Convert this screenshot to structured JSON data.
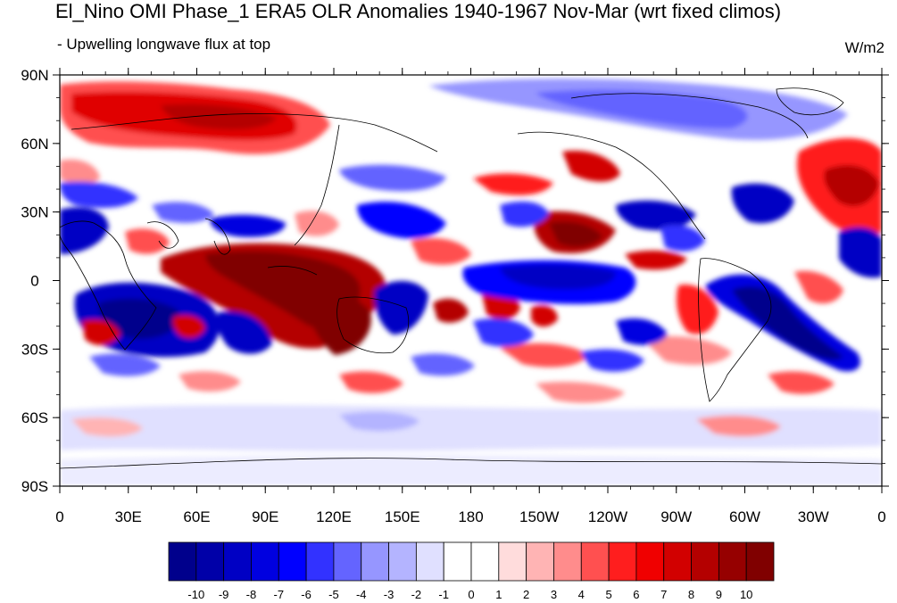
{
  "title": "El_Nino OMI Phase_1 ERA5 OLR Anomalies 1940-1967 Nov-Mar (wrt fixed climos)",
  "subtitle": "- Upwelling longwave flux at top",
  "units": "W/m2",
  "lat_ticks": [
    "90N",
    "60N",
    "30N",
    "0",
    "30S",
    "60S",
    "90S"
  ],
  "lon_ticks": [
    "0",
    "30E",
    "60E",
    "90E",
    "120E",
    "150E",
    "180",
    "150W",
    "120W",
    "90W",
    "60W",
    "30W",
    "0"
  ],
  "colorbar": {
    "labels": [
      "-10",
      "-9",
      "-8",
      "-7",
      "-6",
      "-5",
      "-4",
      "-3",
      "-2",
      "-1",
      "0",
      "1",
      "2",
      "3",
      "4",
      "5",
      "6",
      "7",
      "8",
      "9",
      "10"
    ],
    "colors": [
      "#00008c",
      "#0000a8",
      "#0000c4",
      "#0000e0",
      "#0000ff",
      "#3232ff",
      "#6464ff",
      "#9696ff",
      "#b4b4ff",
      "#e0e0ff",
      "#ffffff",
      "#ffffff",
      "#ffdcdc",
      "#ffb4b4",
      "#ff8c8c",
      "#ff5050",
      "#ff1e1e",
      "#f00000",
      "#d20000",
      "#b40000",
      "#960000",
      "#800000"
    ]
  }
}
